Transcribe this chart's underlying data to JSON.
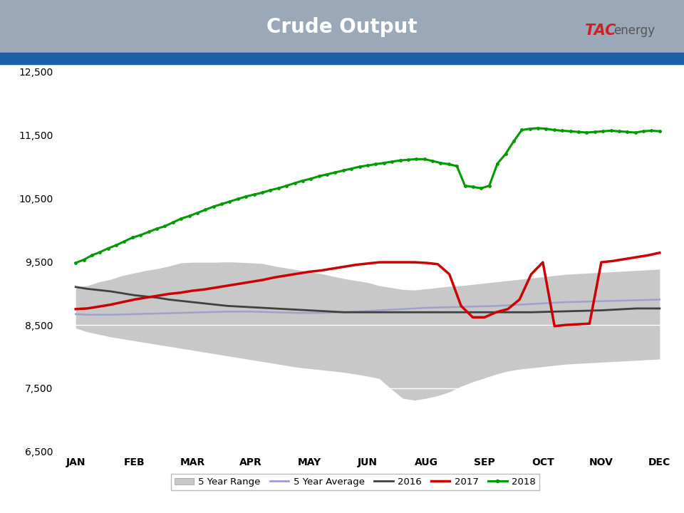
{
  "title": "Crude Output",
  "title_bg_color": "#9aa8b8",
  "title_bar_color": "#1a5fa8",
  "title_fontsize": 20,
  "title_color": "white",
  "ylim": [
    6500,
    12500
  ],
  "yticks": [
    6500,
    7500,
    8500,
    9500,
    10500,
    11500,
    12500
  ],
  "months": [
    "JAN",
    "FEB",
    "MAR",
    "APR",
    "MAY",
    "JUN",
    "AUG",
    "SEP",
    "OCT",
    "NOV",
    "DEC"
  ],
  "bg_color": "#ffffff",
  "five_yr_range_upper": [
    9100,
    9120,
    9180,
    9220,
    9280,
    9320,
    9360,
    9390,
    9430,
    9480,
    9490,
    9490,
    9490,
    9500,
    9490,
    9480,
    9470,
    9430,
    9400,
    9370,
    9340,
    9310,
    9270,
    9230,
    9200,
    9170,
    9120,
    9090,
    9060,
    9050,
    9070,
    9090,
    9110,
    9120,
    9140,
    9160,
    9180,
    9200,
    9220,
    9240,
    9260,
    9280,
    9300,
    9310,
    9320,
    9330,
    9340,
    9350,
    9360,
    9370,
    9380
  ],
  "five_yr_range_lower": [
    8450,
    8390,
    8350,
    8310,
    8280,
    8250,
    8220,
    8190,
    8160,
    8130,
    8100,
    8070,
    8040,
    8010,
    7980,
    7950,
    7920,
    7890,
    7860,
    7830,
    7810,
    7790,
    7770,
    7750,
    7720,
    7690,
    7650,
    7490,
    7340,
    7310,
    7340,
    7380,
    7440,
    7530,
    7600,
    7660,
    7720,
    7770,
    7800,
    7820,
    7840,
    7860,
    7880,
    7890,
    7900,
    7910,
    7920,
    7930,
    7940,
    7950,
    7960
  ],
  "five_yr_avg": [
    8670,
    8660,
    8660,
    8660,
    8665,
    8670,
    8675,
    8680,
    8685,
    8690,
    8695,
    8700,
    8705,
    8710,
    8710,
    8710,
    8705,
    8700,
    8695,
    8690,
    8690,
    8690,
    8695,
    8700,
    8710,
    8720,
    8730,
    8740,
    8750,
    8760,
    8770,
    8775,
    8780,
    8785,
    8790,
    8795,
    8800,
    8810,
    8820,
    8830,
    8840,
    8850,
    8860,
    8865,
    8870,
    8875,
    8880,
    8885,
    8890,
    8895,
    8900
  ],
  "data_2016": [
    9100,
    9070,
    9050,
    9030,
    9000,
    8970,
    8950,
    8930,
    8900,
    8880,
    8860,
    8840,
    8820,
    8800,
    8790,
    8780,
    8770,
    8760,
    8750,
    8740,
    8730,
    8720,
    8710,
    8700,
    8700,
    8700,
    8700,
    8700,
    8700,
    8700,
    8700,
    8700,
    8700,
    8700,
    8700,
    8700,
    8700,
    8700,
    8700,
    8700,
    8705,
    8710,
    8715,
    8720,
    8725,
    8730,
    8740,
    8750,
    8760,
    8760,
    8760
  ],
  "data_2017": [
    8750,
    8760,
    8790,
    8820,
    8860,
    8900,
    8930,
    8960,
    8990,
    9010,
    9040,
    9060,
    9090,
    9120,
    9150,
    9180,
    9210,
    9250,
    9280,
    9310,
    9340,
    9360,
    9390,
    9420,
    9450,
    9470,
    9490,
    9490,
    9490,
    9490,
    9480,
    9460,
    9300,
    8800,
    8620,
    8620,
    8700,
    8750,
    8900,
    9300,
    9490,
    8480,
    8500,
    8510,
    8520,
    9490,
    9510,
    9540,
    9570,
    9600,
    9640
  ],
  "data_2018": [
    9480,
    9530,
    9600,
    9650,
    9710,
    9760,
    9820,
    9880,
    9920,
    9970,
    10020,
    10060,
    10120,
    10180,
    10220,
    10270,
    10320,
    10370,
    10410,
    10450,
    10490,
    10530,
    10560,
    10590,
    10630,
    10660,
    10700,
    10740,
    10780,
    10810,
    10850,
    10880,
    10910,
    10940,
    10970,
    11000,
    11020,
    11040,
    11060,
    11080,
    11100,
    11110,
    11120,
    11120,
    11090,
    11060,
    11040,
    11010,
    10700,
    10680,
    10660,
    10700,
    11050,
    11200,
    11400,
    11580,
    11600,
    11610,
    11600,
    11580,
    11570,
    11560,
    11550,
    11540,
    11550,
    11560,
    11570,
    11560,
    11550,
    11540,
    11560,
    11570,
    11560
  ],
  "color_5yr_range": "#c8c8c8",
  "color_5yr_avg": "#a0a0cc",
  "color_2016": "#404040",
  "color_2017": "#cc0000",
  "color_2018": "#009900",
  "tac_red": "#cc2222",
  "tac_dark": "#333333",
  "energy_color": "#555555"
}
